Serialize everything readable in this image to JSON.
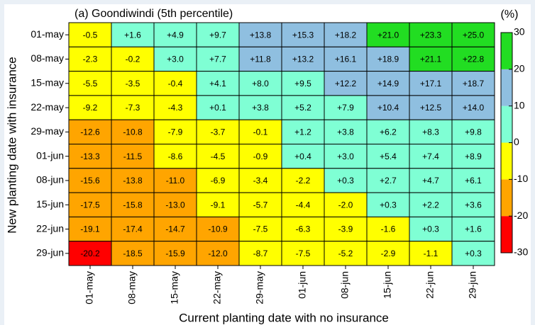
{
  "chart_data": {
    "type": "heatmap",
    "title": "(a) Goondiwindi (5th percentile)",
    "x_label": "Current planting date with no insurance",
    "y_label": "New planting date with insurance",
    "x_categories": [
      "01-may",
      "08-may",
      "15-may",
      "22-may",
      "29-may",
      "01-jun",
      "08-jun",
      "15-jun",
      "22-jun",
      "29-jun"
    ],
    "y_categories": [
      "01-may",
      "08-may",
      "15-may",
      "22-may",
      "29-may",
      "01-jun",
      "08-jun",
      "15-jun",
      "22-jun",
      "29-jun"
    ],
    "values": [
      [
        -0.5,
        1.6,
        4.9,
        9.7,
        13.8,
        15.3,
        18.2,
        21.0,
        23.3,
        25.0
      ],
      [
        -2.3,
        -0.2,
        3.0,
        7.7,
        11.8,
        13.2,
        16.1,
        18.9,
        21.1,
        22.8
      ],
      [
        -5.5,
        -3.5,
        -0.4,
        4.1,
        8.0,
        9.5,
        12.2,
        14.9,
        17.1,
        18.7
      ],
      [
        -9.2,
        -7.3,
        -4.3,
        0.1,
        3.8,
        5.2,
        7.9,
        10.4,
        12.5,
        14.0
      ],
      [
        -12.6,
        -10.8,
        -7.9,
        -3.7,
        -0.1,
        1.2,
        3.8,
        6.2,
        8.3,
        9.8
      ],
      [
        -13.3,
        -11.5,
        -8.6,
        -4.5,
        -0.9,
        0.4,
        3.0,
        5.4,
        7.4,
        8.9
      ],
      [
        -15.6,
        -13.8,
        -11.0,
        -6.9,
        -3.4,
        -2.2,
        0.3,
        2.7,
        4.7,
        6.1
      ],
      [
        -17.5,
        -15.8,
        -13.0,
        -9.1,
        -5.7,
        -4.4,
        -2.0,
        0.3,
        2.2,
        3.6
      ],
      [
        -19.1,
        -17.4,
        -14.7,
        -10.9,
        -7.5,
        -6.3,
        -3.9,
        -1.6,
        0.3,
        1.6
      ],
      [
        -20.2,
        -18.5,
        -15.9,
        -12.0,
        -8.7,
        -7.5,
        -5.2,
        -2.9,
        -1.1,
        0.3
      ]
    ],
    "value_labels": [
      [
        "-0.5",
        "+1.6",
        "+4.9",
        "+9.7",
        "+13.8",
        "+15.3",
        "+18.2",
        "+21.0",
        "+23.3",
        "+25.0"
      ],
      [
        "-2.3",
        "-0.2",
        "+3.0",
        "+7.7",
        "+11.8",
        "+13.2",
        "+16.1",
        "+18.9",
        "+21.1",
        "+22.8"
      ],
      [
        "-5.5",
        "-3.5",
        "-0.4",
        "+4.1",
        "+8.0",
        "+9.5",
        "+12.2",
        "+14.9",
        "+17.1",
        "+18.7"
      ],
      [
        "-9.2",
        "-7.3",
        "-4.3",
        "+0.1",
        "+3.8",
        "+5.2",
        "+7.9",
        "+10.4",
        "+12.5",
        "+14.0"
      ],
      [
        "-12.6",
        "-10.8",
        "-7.9",
        "-3.7",
        "-0.1",
        "+1.2",
        "+3.8",
        "+6.2",
        "+8.3",
        "+9.8"
      ],
      [
        "-13.3",
        "-11.5",
        "-8.6",
        "-4.5",
        "-0.9",
        "+0.4",
        "+3.0",
        "+5.4",
        "+7.4",
        "+8.9"
      ],
      [
        "-15.6",
        "-13.8",
        "-11.0",
        "-6.9",
        "-3.4",
        "-2.2",
        "+0.3",
        "+2.7",
        "+4.7",
        "+6.1"
      ],
      [
        "-17.5",
        "-15.8",
        "-13.0",
        "-9.1",
        "-5.7",
        "-4.4",
        "-2.0",
        "+0.3",
        "+2.2",
        "+3.6"
      ],
      [
        "-19.1",
        "-17.4",
        "-14.7",
        "-10.9",
        "-7.5",
        "-6.3",
        "-3.9",
        "-1.6",
        "+0.3",
        "+1.6"
      ],
      [
        "-20.2",
        "-18.5",
        "-15.9",
        "-12.0",
        "-8.7",
        "-7.5",
        "-5.2",
        "-2.9",
        "-1.1",
        "+0.3"
      ]
    ],
    "colorbar_label": "(%)",
    "clim": [
      -30,
      30
    ],
    "cticks": [
      -30,
      -20,
      -10,
      0,
      10,
      20,
      30
    ],
    "colors": [
      "#ff0000",
      "#ffa500",
      "#ffff00",
      "#7fffd4",
      "#8fbfe0",
      "#22dd22"
    ]
  }
}
